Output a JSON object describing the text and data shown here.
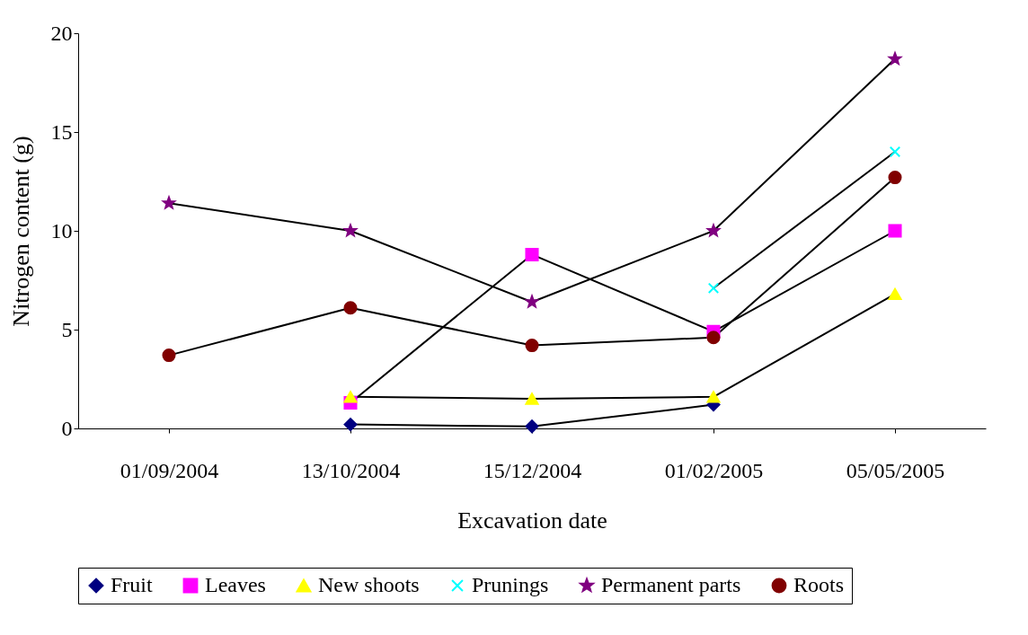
{
  "chart_data": {
    "type": "line",
    "xlabel": "Excavation date",
    "ylabel": "Nitrogen content (g)",
    "categories": [
      "01/09/2004",
      "13/10/2004",
      "15/12/2004",
      "01/02/2005",
      "05/05/2005"
    ],
    "ylim": [
      0,
      20
    ],
    "yticks": [
      0,
      5,
      10,
      15,
      20
    ],
    "grid": false,
    "legend": "bottom",
    "series": [
      {
        "name": "Fruit",
        "color": "#000080",
        "marker": "diamond",
        "values": [
          null,
          0.2,
          0.1,
          1.2,
          null
        ]
      },
      {
        "name": "Leaves",
        "color": "#ff00ff",
        "marker": "square",
        "values": [
          null,
          1.3,
          8.8,
          4.9,
          10.0
        ]
      },
      {
        "name": "New shoots",
        "color": "#ffff00",
        "marker": "triangle",
        "values": [
          null,
          1.6,
          1.5,
          1.6,
          6.8
        ]
      },
      {
        "name": "Prunings",
        "color": "#00ffff",
        "marker": "cross",
        "values": [
          null,
          null,
          null,
          7.1,
          14.0
        ]
      },
      {
        "name": "Permanent parts",
        "color": "#800080",
        "marker": "star",
        "values": [
          11.4,
          10.0,
          6.4,
          10.0,
          18.7
        ]
      },
      {
        "name": "Roots",
        "color": "#800000",
        "marker": "circle",
        "values": [
          3.7,
          6.1,
          4.2,
          4.6,
          12.7
        ]
      }
    ]
  }
}
